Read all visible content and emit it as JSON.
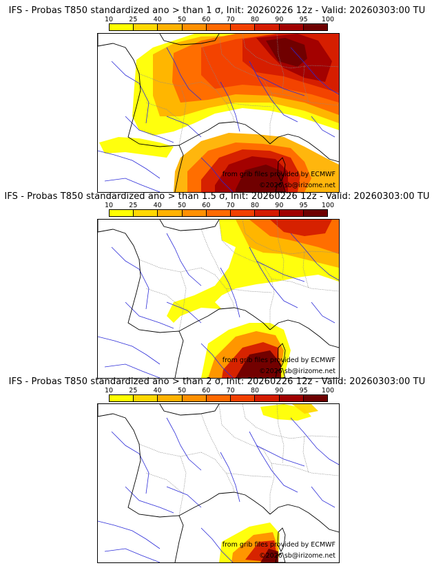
{
  "panels": [
    {
      "title": "IFS - Probas T850  standardized ano > than 1 σ, Init: 20260226 12z - Valid: 20260303:00 TU",
      "threshold_sigma": 1
    },
    {
      "title": "IFS - Probas T850  standardized ano > than 1.5 σ, Init: 20260226 12z - Valid: 20260303:00 TU",
      "threshold_sigma": 1.5
    },
    {
      "title": "IFS - Probas T850  standardized ano > than 2 σ, Init: 20260226 12z - Valid: 20260303:00 TU",
      "threshold_sigma": 2
    }
  ],
  "scale": {
    "labels": [
      "10",
      "25",
      "40",
      "50",
      "60",
      "70",
      "80",
      "90",
      "95",
      "100"
    ],
    "colors": [
      "#ffff00",
      "#ffd800",
      "#ffb200",
      "#ff9000",
      "#ff6a00",
      "#f24000",
      "#d41c00",
      "#a00000",
      "#6e0000"
    ]
  },
  "credits": {
    "source": "from grib files provided by ECMWF",
    "copyright": "©2026 sb@irizome.net"
  },
  "map_colors": {
    "coast": "#000000",
    "rivers": "#2b2bd8",
    "borders": "#8a8a8a"
  }
}
